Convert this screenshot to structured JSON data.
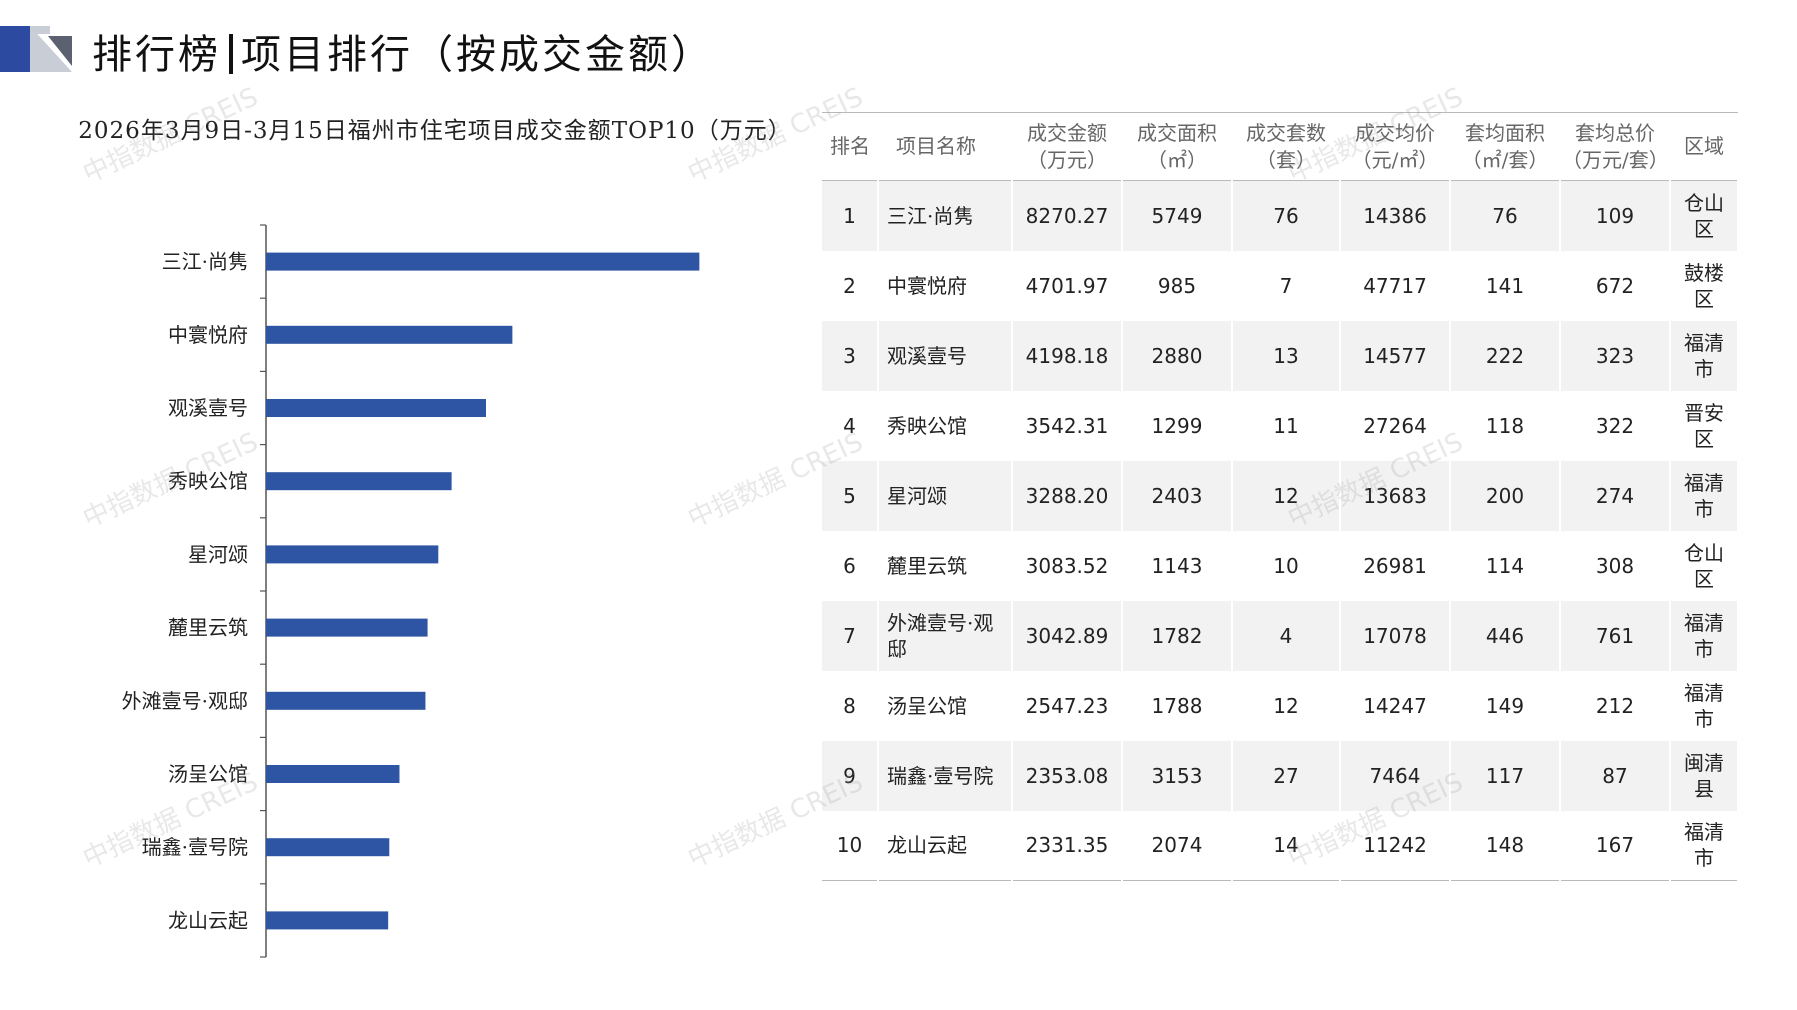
{
  "header": {
    "title_left": "排行榜",
    "title_right": "项目排行（按成交金额）"
  },
  "colors": {
    "bar": "#2E55A4",
    "header_dark": "#2B4AA0",
    "header_light": "#C8CDD6",
    "row_stripe": "#F2F2F2"
  },
  "watermark": "中指数据 CREIS",
  "chart_data": {
    "type": "bar",
    "orientation": "horizontal",
    "title": "2026年3月9日-3月15日福州市住宅项目成交金额TOP10（万元）",
    "categories": [
      "三江·尚隽",
      "中寰悦府",
      "观溪壹号",
      "秀映公馆",
      "星河颂",
      "麓里云筑",
      "外滩壹号·观邸",
      "汤呈公馆",
      "瑞鑫·壹号院",
      "龙山云起"
    ],
    "values": [
      8270.27,
      4701.97,
      4198.18,
      3542.31,
      3288.2,
      3083.52,
      3042.89,
      2547.23,
      2353.08,
      2331.35
    ],
    "xlim": [
      0,
      10000
    ],
    "grid": false,
    "legend": "none"
  },
  "table": {
    "headers": [
      {
        "line1": "排名",
        "line2": ""
      },
      {
        "line1": "项目名称",
        "line2": ""
      },
      {
        "line1": "成交金额",
        "line2": "（万元）"
      },
      {
        "line1": "成交面积",
        "line2": "（㎡）"
      },
      {
        "line1": "成交套数",
        "line2": "（套）"
      },
      {
        "line1": "成交均价",
        "line2": "（元/㎡）"
      },
      {
        "line1": "套均面积",
        "line2": "（㎡/套）"
      },
      {
        "line1": "套均总价",
        "line2": "（万元/套）"
      },
      {
        "line1": "区域",
        "line2": ""
      }
    ],
    "rows": [
      {
        "rank": "1",
        "name": "三江·尚隽",
        "amount": "8270.27",
        "area": "5749",
        "units": "76",
        "price": "14386",
        "avg_area": "76",
        "avg_total": "109",
        "district": "仓山区"
      },
      {
        "rank": "2",
        "name": "中寰悦府",
        "amount": "4701.97",
        "area": "985",
        "units": "7",
        "price": "47717",
        "avg_area": "141",
        "avg_total": "672",
        "district": "鼓楼区"
      },
      {
        "rank": "3",
        "name": "观溪壹号",
        "amount": "4198.18",
        "area": "2880",
        "units": "13",
        "price": "14577",
        "avg_area": "222",
        "avg_total": "323",
        "district": "福清市"
      },
      {
        "rank": "4",
        "name": "秀映公馆",
        "amount": "3542.31",
        "area": "1299",
        "units": "11",
        "price": "27264",
        "avg_area": "118",
        "avg_total": "322",
        "district": "晋安区"
      },
      {
        "rank": "5",
        "name": "星河颂",
        "amount": "3288.20",
        "area": "2403",
        "units": "12",
        "price": "13683",
        "avg_area": "200",
        "avg_total": "274",
        "district": "福清市"
      },
      {
        "rank": "6",
        "name": "麓里云筑",
        "amount": "3083.52",
        "area": "1143",
        "units": "10",
        "price": "26981",
        "avg_area": "114",
        "avg_total": "308",
        "district": "仓山区"
      },
      {
        "rank": "7",
        "name": "外滩壹号·观邸",
        "amount": "3042.89",
        "area": "1782",
        "units": "4",
        "price": "17078",
        "avg_area": "446",
        "avg_total": "761",
        "district": "福清市"
      },
      {
        "rank": "8",
        "name": "汤呈公馆",
        "amount": "2547.23",
        "area": "1788",
        "units": "12",
        "price": "14247",
        "avg_area": "149",
        "avg_total": "212",
        "district": "福清市"
      },
      {
        "rank": "9",
        "name": "瑞鑫·壹号院",
        "amount": "2353.08",
        "area": "3153",
        "units": "27",
        "price": "7464",
        "avg_area": "117",
        "avg_total": "87",
        "district": "闽清县"
      },
      {
        "rank": "10",
        "name": "龙山云起",
        "amount": "2331.35",
        "area": "2074",
        "units": "14",
        "price": "11242",
        "avg_area": "148",
        "avg_total": "167",
        "district": "福清市"
      }
    ]
  }
}
